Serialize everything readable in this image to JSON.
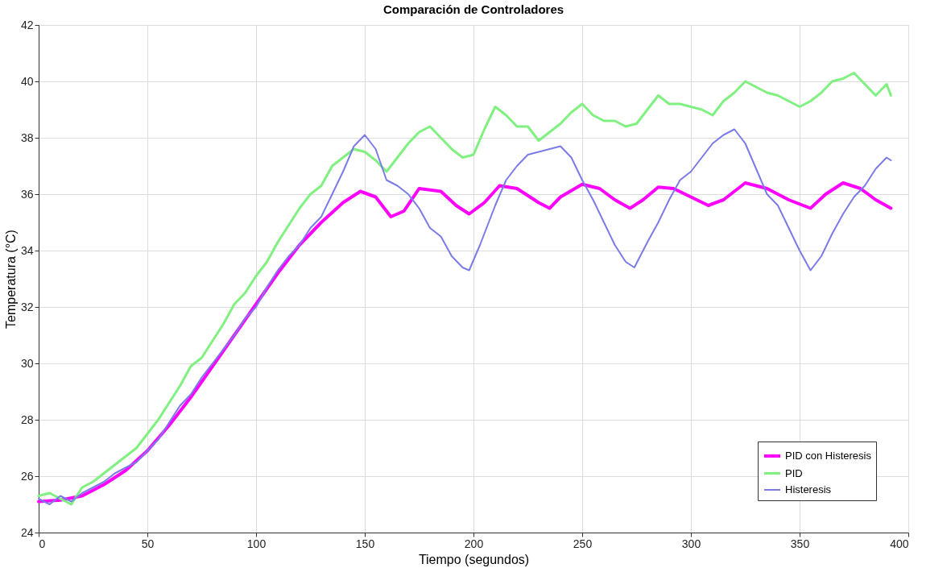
{
  "chart_data": {
    "type": "line",
    "title": "Comparación de Controladores",
    "xlabel": "Tiempo (segundos)",
    "ylabel": "Temperatura (°C)",
    "xlim": [
      0,
      400
    ],
    "xticks": [
      0,
      50,
      100,
      150,
      200,
      250,
      300,
      350,
      400
    ],
    "ylim": [
      24,
      42
    ],
    "yticks": [
      24,
      26,
      28,
      30,
      32,
      34,
      36,
      38,
      40,
      42
    ],
    "grid": true,
    "legend": "bottom right",
    "series": [
      {
        "name": "PID con Histeresis",
        "color": "#ff00ff",
        "x": [
          0,
          10,
          20,
          30,
          40,
          50,
          60,
          70,
          80,
          90,
          100,
          110,
          120,
          130,
          140,
          148,
          155,
          162,
          168,
          175,
          185,
          192,
          198,
          205,
          212,
          220,
          230,
          235,
          240,
          250,
          258,
          265,
          272,
          278,
          285,
          292,
          300,
          308,
          315,
          325,
          335,
          345,
          355,
          362,
          370,
          378,
          385,
          392
        ],
        "values": [
          25.1,
          25.15,
          25.3,
          25.7,
          26.2,
          26.9,
          27.8,
          28.8,
          29.9,
          31.0,
          32.1,
          33.2,
          34.2,
          35.0,
          35.7,
          36.1,
          35.9,
          35.2,
          35.4,
          36.2,
          36.1,
          35.6,
          35.3,
          35.7,
          36.3,
          36.2,
          35.7,
          35.5,
          35.9,
          36.35,
          36.2,
          35.8,
          35.5,
          35.8,
          36.25,
          36.2,
          35.9,
          35.6,
          35.8,
          36.4,
          36.2,
          35.8,
          35.5,
          36.0,
          36.4,
          36.2,
          35.8,
          35.5
        ]
      },
      {
        "name": "PID",
        "color": "#80f080",
        "x": [
          0,
          5,
          10,
          15,
          20,
          25,
          30,
          35,
          40,
          45,
          50,
          55,
          60,
          65,
          70,
          75,
          80,
          85,
          90,
          95,
          100,
          105,
          110,
          115,
          120,
          125,
          130,
          135,
          140,
          145,
          150,
          155,
          160,
          165,
          170,
          175,
          180,
          185,
          190,
          195,
          200,
          205,
          210,
          215,
          220,
          225,
          230,
          235,
          240,
          245,
          250,
          255,
          260,
          265,
          270,
          275,
          280,
          285,
          290,
          295,
          300,
          305,
          310,
          315,
          320,
          325,
          330,
          335,
          340,
          345,
          350,
          355,
          360,
          365,
          370,
          375,
          380,
          385,
          390,
          392
        ],
        "values": [
          25.3,
          25.4,
          25.2,
          25.0,
          25.6,
          25.8,
          26.1,
          26.4,
          26.7,
          27.0,
          27.5,
          28.0,
          28.6,
          29.2,
          29.9,
          30.2,
          30.8,
          31.4,
          32.1,
          32.5,
          33.1,
          33.6,
          34.3,
          34.9,
          35.5,
          36.0,
          36.3,
          37.0,
          37.3,
          37.6,
          37.5,
          37.2,
          36.8,
          37.3,
          37.8,
          38.2,
          38.4,
          38.0,
          37.6,
          37.3,
          37.4,
          38.3,
          39.1,
          38.8,
          38.4,
          38.4,
          37.9,
          38.2,
          38.5,
          38.9,
          39.2,
          38.8,
          38.6,
          38.6,
          38.4,
          38.5,
          39.0,
          39.5,
          39.2,
          39.2,
          39.1,
          39.0,
          38.8,
          39.3,
          39.6,
          40.0,
          39.8,
          39.6,
          39.5,
          39.3,
          39.1,
          39.3,
          39.6,
          40.0,
          40.1,
          40.3,
          39.9,
          39.5,
          39.9,
          39.5
        ]
      },
      {
        "name": "Histeresis",
        "color": "#7b7be8",
        "x": [
          0,
          5,
          10,
          15,
          20,
          25,
          30,
          35,
          40,
          45,
          50,
          55,
          60,
          65,
          70,
          75,
          80,
          85,
          90,
          95,
          100,
          105,
          110,
          115,
          120,
          125,
          130,
          135,
          140,
          145,
          150,
          155,
          160,
          165,
          170,
          175,
          180,
          185,
          190,
          195,
          198,
          203,
          210,
          215,
          220,
          225,
          230,
          235,
          240,
          245,
          250,
          255,
          260,
          265,
          270,
          274,
          280,
          285,
          290,
          295,
          300,
          305,
          310,
          315,
          320,
          325,
          330,
          335,
          340,
          345,
          350,
          355,
          360,
          365,
          370,
          375,
          380,
          385,
          390,
          392
        ],
        "values": [
          25.2,
          25.0,
          25.3,
          25.1,
          25.4,
          25.6,
          25.8,
          26.1,
          26.3,
          26.5,
          26.9,
          27.3,
          27.9,
          28.5,
          28.9,
          29.5,
          30.0,
          30.5,
          31.0,
          31.6,
          32.0,
          32.7,
          33.3,
          33.8,
          34.2,
          34.8,
          35.2,
          36.0,
          36.8,
          37.7,
          38.1,
          37.6,
          36.5,
          36.3,
          36.0,
          35.5,
          34.8,
          34.5,
          33.8,
          33.4,
          33.3,
          34.2,
          35.6,
          36.5,
          37.0,
          37.4,
          37.5,
          37.6,
          37.7,
          37.3,
          36.5,
          35.8,
          35.0,
          34.2,
          33.6,
          33.4,
          34.3,
          35.0,
          35.8,
          36.5,
          36.8,
          37.3,
          37.8,
          38.1,
          38.3,
          37.8,
          36.9,
          36.0,
          35.6,
          34.8,
          34.0,
          33.3,
          33.8,
          34.6,
          35.3,
          35.9,
          36.3,
          36.9,
          37.3,
          37.2
        ]
      }
    ]
  }
}
